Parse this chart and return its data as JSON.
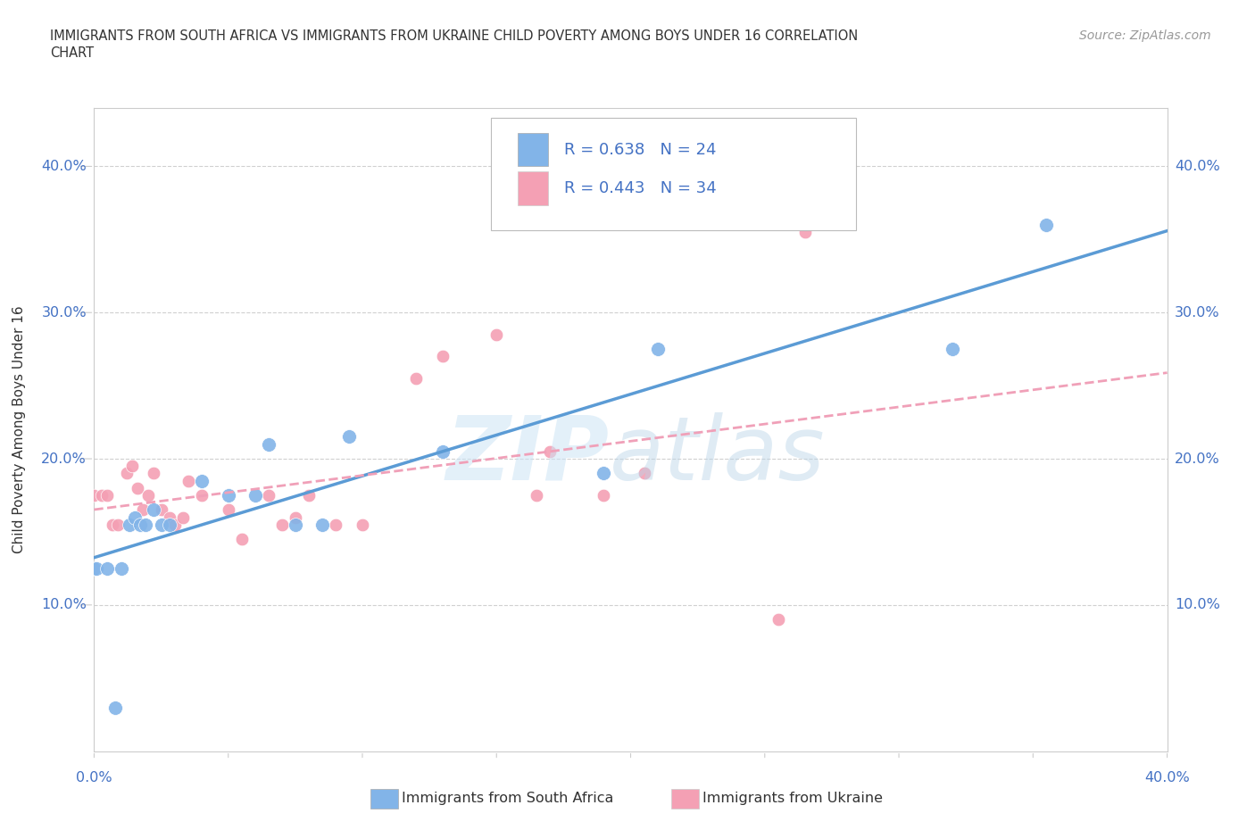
{
  "title": "IMMIGRANTS FROM SOUTH AFRICA VS IMMIGRANTS FROM UKRAINE CHILD POVERTY AMONG BOYS UNDER 16 CORRELATION\nCHART",
  "source": "Source: ZipAtlas.com",
  "ylabel": "Child Poverty Among Boys Under 16",
  "xlim": [
    0.0,
    0.4
  ],
  "ylim": [
    0.0,
    0.44
  ],
  "R_south_africa": 0.638,
  "N_south_africa": 24,
  "R_ukraine": 0.443,
  "N_ukraine": 34,
  "color_south_africa": "#82b4e8",
  "color_ukraine": "#f4a0b4",
  "color_line_sa": "#5b9bd5",
  "color_line_uk": "#f0a0b8",
  "color_text_blue": "#4472c4",
  "color_grid": "#d0d0d0",
  "sa_x": [
    0.0,
    0.001,
    0.005,
    0.008,
    0.01,
    0.013,
    0.015,
    0.017,
    0.019,
    0.022,
    0.025,
    0.028,
    0.04,
    0.05,
    0.06,
    0.065,
    0.075,
    0.085,
    0.095,
    0.13,
    0.19,
    0.21,
    0.32,
    0.355
  ],
  "sa_y": [
    0.125,
    0.125,
    0.125,
    0.03,
    0.125,
    0.155,
    0.16,
    0.155,
    0.155,
    0.165,
    0.155,
    0.155,
    0.185,
    0.175,
    0.175,
    0.21,
    0.155,
    0.155,
    0.215,
    0.205,
    0.19,
    0.275,
    0.275,
    0.36
  ],
  "uk_x": [
    0.0,
    0.003,
    0.005,
    0.007,
    0.009,
    0.012,
    0.014,
    0.016,
    0.018,
    0.02,
    0.022,
    0.025,
    0.028,
    0.03,
    0.033,
    0.035,
    0.04,
    0.05,
    0.055,
    0.065,
    0.07,
    0.075,
    0.08,
    0.09,
    0.1,
    0.12,
    0.13,
    0.15,
    0.165,
    0.17,
    0.19,
    0.205,
    0.255,
    0.265
  ],
  "uk_y": [
    0.175,
    0.175,
    0.175,
    0.155,
    0.155,
    0.19,
    0.195,
    0.18,
    0.165,
    0.175,
    0.19,
    0.165,
    0.16,
    0.155,
    0.16,
    0.185,
    0.175,
    0.165,
    0.145,
    0.175,
    0.155,
    0.16,
    0.175,
    0.155,
    0.155,
    0.255,
    0.27,
    0.285,
    0.175,
    0.205,
    0.175,
    0.19,
    0.09,
    0.355
  ]
}
